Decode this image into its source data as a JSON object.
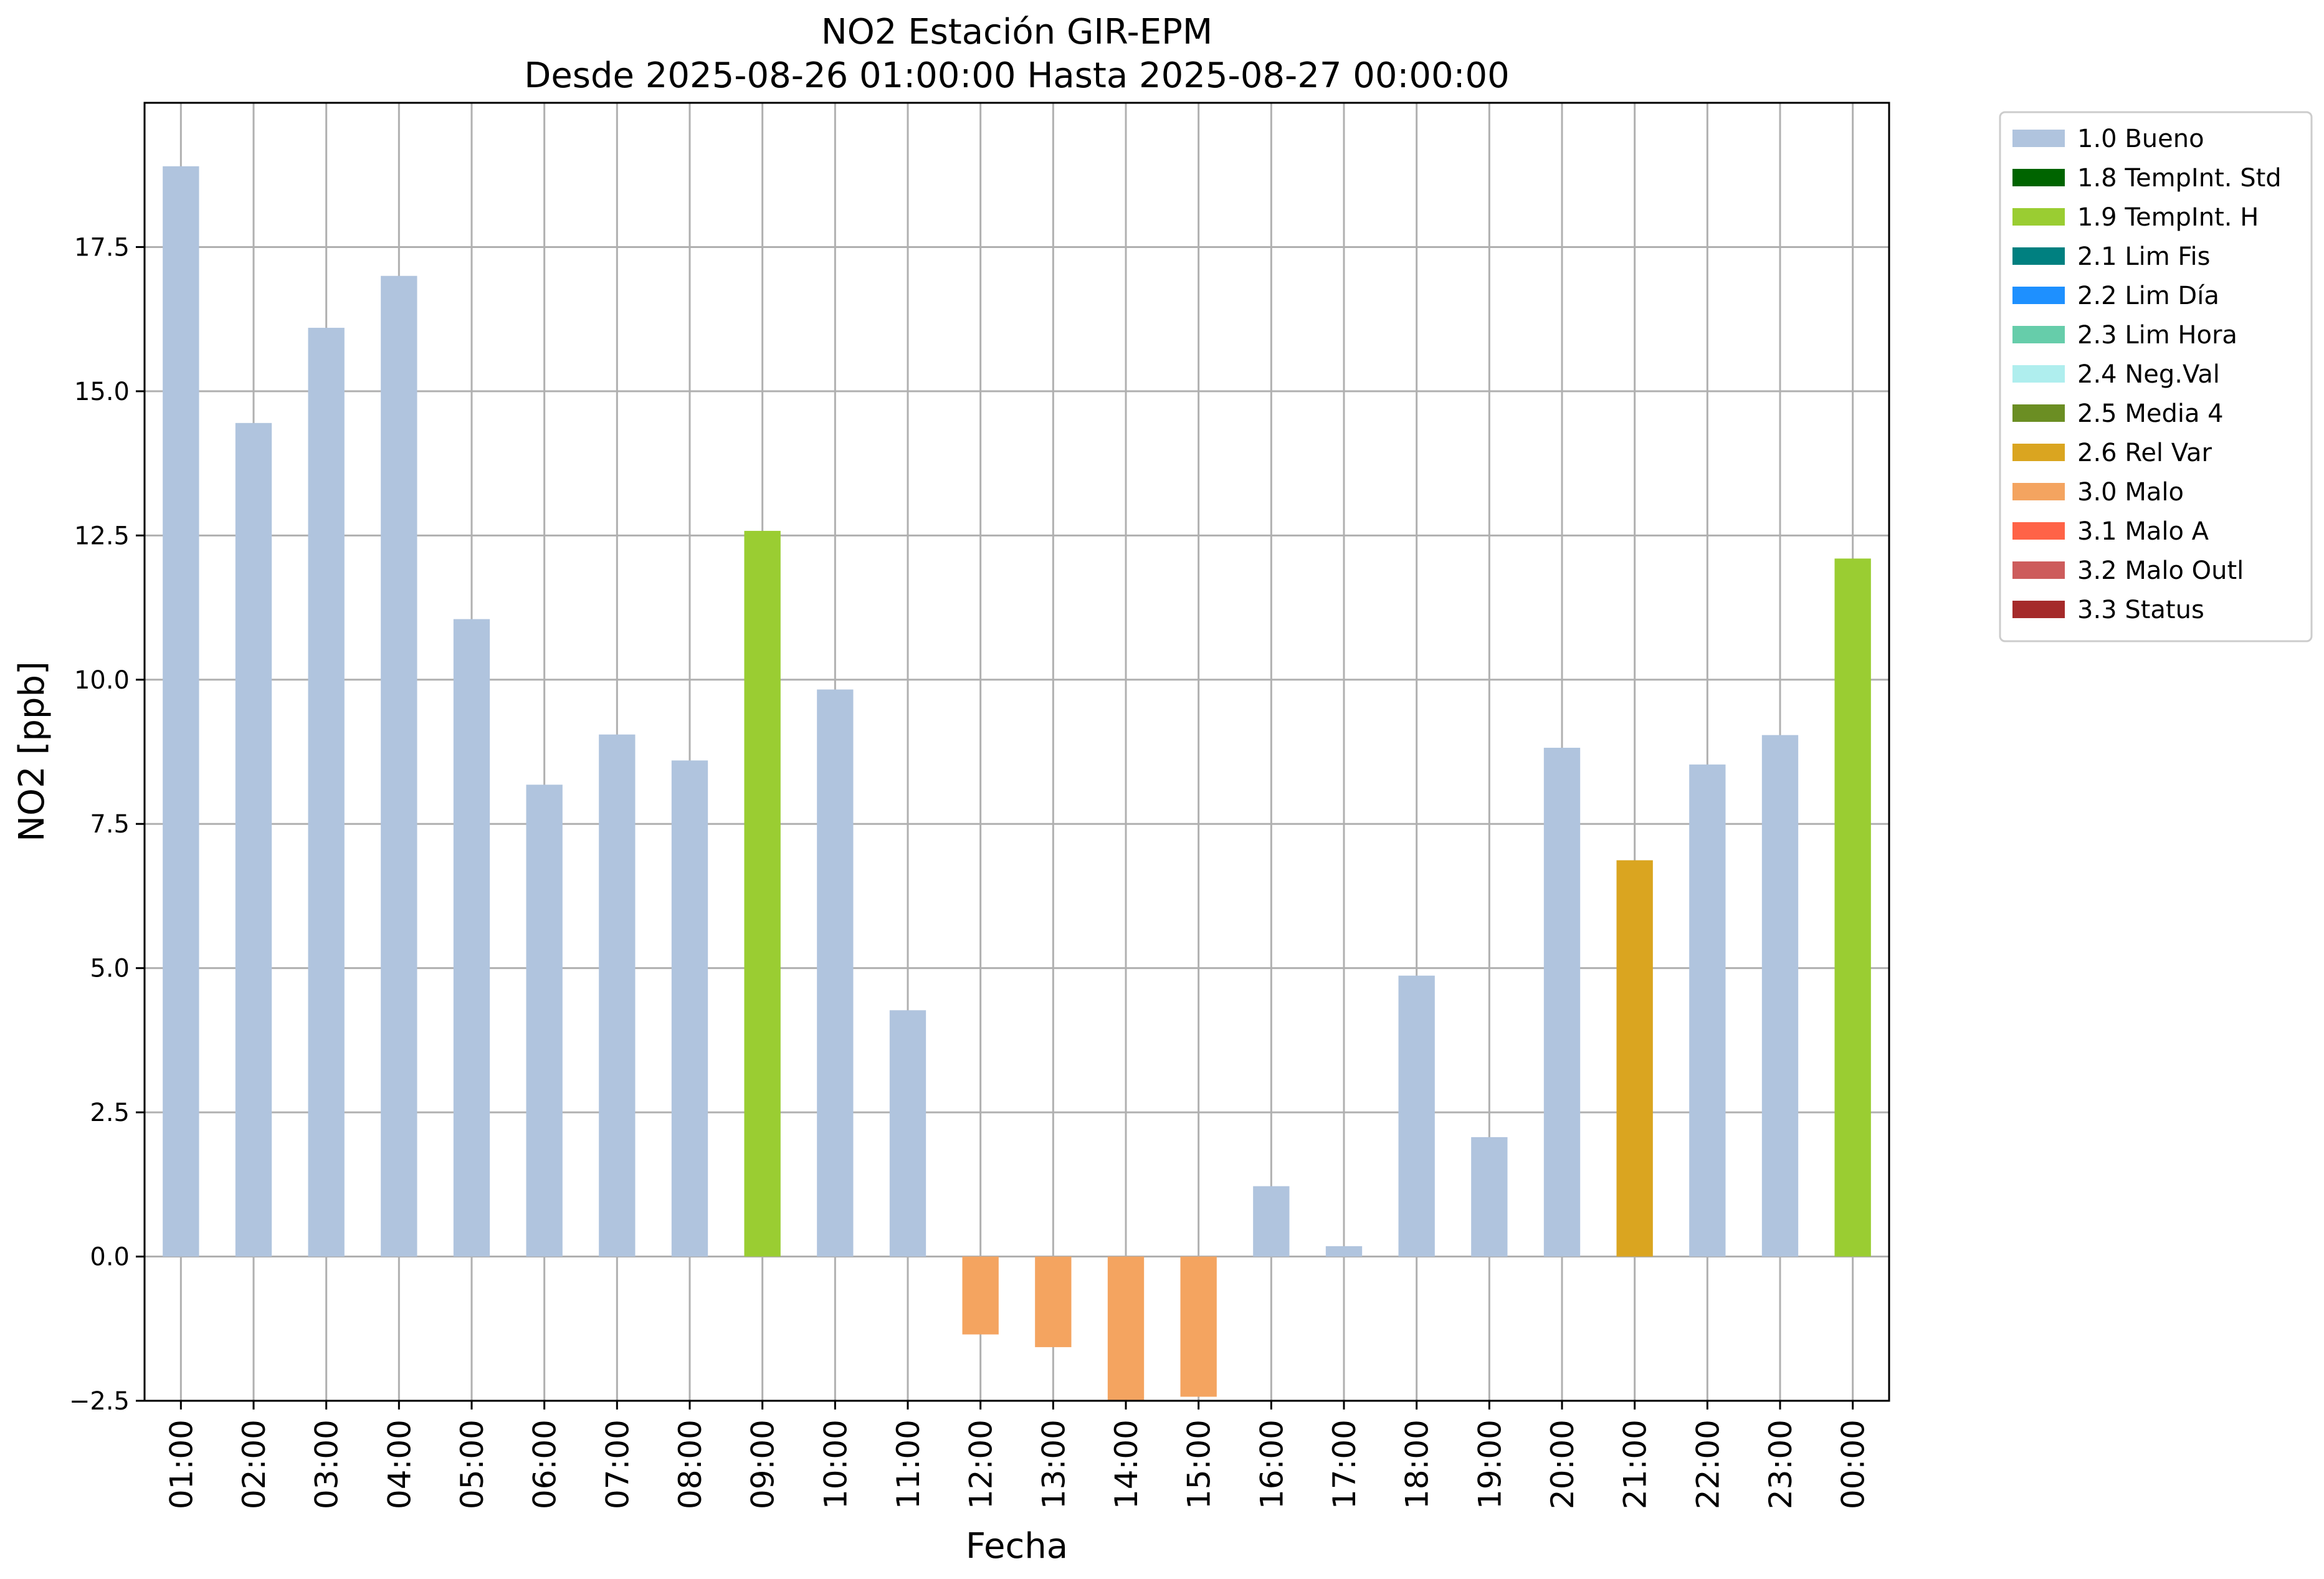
{
  "chart_data": {
    "type": "bar",
    "title": "NO2 Estación GIR-EPM",
    "subtitle": "Desde 2025-08-26 01:00:00 Hasta 2025-08-27 00:00:00",
    "xlabel": "Fecha",
    "ylabel": "NO2 [ppb]",
    "ylim": [
      -2.5,
      20.0
    ],
    "yticks": [
      -2.5,
      0.0,
      2.5,
      5.0,
      7.5,
      10.0,
      12.5,
      15.0,
      17.5
    ],
    "ytick_labels": [
      "−2.5",
      "0.0",
      "2.5",
      "5.0",
      "7.5",
      "10.0",
      "12.5",
      "15.0",
      "17.5"
    ],
    "grid": true,
    "legend_position": "outside-right",
    "categories": [
      "01:00",
      "02:00",
      "03:00",
      "04:00",
      "05:00",
      "06:00",
      "07:00",
      "08:00",
      "09:00",
      "10:00",
      "11:00",
      "12:00",
      "13:00",
      "14:00",
      "15:00",
      "16:00",
      "17:00",
      "18:00",
      "19:00",
      "20:00",
      "21:00",
      "22:00",
      "23:00",
      "00:00"
    ],
    "values": [
      18.9,
      14.45,
      16.1,
      17.0,
      11.05,
      8.18,
      9.05,
      8.6,
      12.58,
      9.83,
      4.27,
      -1.35,
      -1.57,
      -2.5,
      -2.43,
      1.22,
      0.18,
      4.87,
      2.07,
      8.82,
      6.87,
      8.53,
      9.04,
      12.1
    ],
    "flags": [
      "1.0 Bueno",
      "1.0 Bueno",
      "1.0 Bueno",
      "1.0 Bueno",
      "1.0 Bueno",
      "1.0 Bueno",
      "1.0 Bueno",
      "1.0 Bueno",
      "1.9 TempInt. H",
      "1.0 Bueno",
      "1.0 Bueno",
      "3.0 Malo",
      "3.0 Malo",
      "3.0 Malo",
      "3.0 Malo",
      "1.0 Bueno",
      "1.0 Bueno",
      "1.0 Bueno",
      "1.0 Bueno",
      "1.0 Bueno",
      "2.6 Rel Var",
      "1.0 Bueno",
      "1.0 Bueno",
      "1.9 TempInt. H"
    ],
    "legend": [
      {
        "label": "1.0 Bueno",
        "color": "#b0c4de"
      },
      {
        "label": "1.8 TempInt. Std",
        "color": "#006400"
      },
      {
        "label": "1.9 TempInt. H",
        "color": "#9acd32"
      },
      {
        "label": "2.1 Lim Fis",
        "color": "#008080"
      },
      {
        "label": "2.2 Lim Día",
        "color": "#1e90ff"
      },
      {
        "label": "2.3 Lim Hora",
        "color": "#66cdaa"
      },
      {
        "label": "2.4 Neg.Val",
        "color": "#afeeee"
      },
      {
        "label": "2.5 Media 4",
        "color": "#6b8e23"
      },
      {
        "label": "2.6 Rel Var",
        "color": "#daa520"
      },
      {
        "label": "3.0 Malo",
        "color": "#f4a460"
      },
      {
        "label": "3.1 Malo A",
        "color": "#ff6347"
      },
      {
        "label": "3.2 Malo Outl",
        "color": "#cd5c5c"
      },
      {
        "label": "3.3 Status",
        "color": "#a52a2a"
      }
    ]
  }
}
